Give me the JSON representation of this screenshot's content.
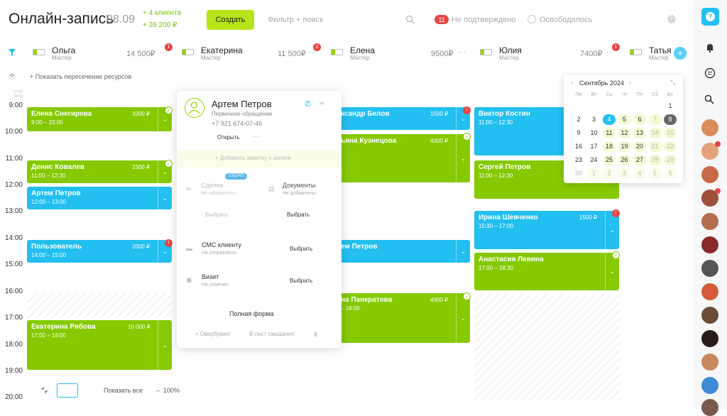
{
  "header": {
    "title": "Онлайн-запись",
    "date": "08.09",
    "new_clients": "+ 4 клиента",
    "revenue": "+ 26 200 ₽",
    "create_label": "Создать",
    "search_placeholder": "Фильтр + поиск",
    "unconfirmed_count": "11",
    "unconfirmed_label": "Не подтверждено",
    "freed_label": "Освободилось"
  },
  "resources": [
    {
      "name": "Ольга",
      "role": "Мастер",
      "price": "14 500₽",
      "badge": "1"
    },
    {
      "name": "Екатерина",
      "role": "Мастер",
      "price": "11 500₽",
      "badge": "2"
    },
    {
      "name": "Елена",
      "role": "Мастер",
      "price": "9500₽",
      "badge": ""
    },
    {
      "name": "Юлия",
      "role": "Мастер",
      "price": "7400₽",
      "badge": "1"
    },
    {
      "name": "Татья",
      "role": "Мастер",
      "price": "",
      "badge": ""
    }
  ],
  "show_overlap": "+ Показать пересечение ресурсов",
  "times": [
    "9:00",
    "10:00",
    "11:00",
    "12:00",
    "13:00",
    "14:00",
    "15:00",
    "16:00",
    "17:00",
    "18:00",
    "19:00",
    "20:00"
  ],
  "small_time": "07:00 08:00",
  "appointments": [
    {
      "name": "Елена Снегирева",
      "time": "9:00 – 10:00",
      "price": "1000 ₽"
    },
    {
      "name": "Денис Ковалев",
      "time": "11:00 – 12:30",
      "price": "1500 ₽"
    },
    {
      "name": "Артем Петров",
      "time": "12:00 – 13:00",
      "price": ""
    },
    {
      "name": "Пользователь",
      "time": "14:00 – 15:00",
      "price": "2000 ₽"
    },
    {
      "name": "Екатерина Рябова",
      "time": "17:00 – 19:00",
      "price": "10 000 ₽"
    },
    {
      "name": "ксандр Белов",
      "time": "",
      "price": "1500 ₽"
    },
    {
      "name": "ьяна Кузнецова",
      "time": "",
      "price": "4000 ₽"
    },
    {
      "name": "ем Петров",
      "time": "",
      "price": ""
    },
    {
      "name": "на Панкратова",
      "time": "– 18:00",
      "price": "4000 ₽"
    },
    {
      "name": "Виктор Костин",
      "time": "11:00 – 12:30",
      "price": ""
    },
    {
      "name": "Сергей Петров",
      "time": "11:00 – 12:30",
      "price": ""
    },
    {
      "name": "Ирина Шевченко",
      "time": "15:30 – 17:00",
      "price": "1500 ₽"
    },
    {
      "name": "Анастасия Левина",
      "time": "17:00 – 18:30",
      "price": ""
    }
  ],
  "popup": {
    "name": "Артем Петров",
    "subtitle": "Первичное обращение",
    "phone": "+7 921 674-07-46",
    "open": "Открыть",
    "add_note": "+ Добавить заметку к записи",
    "soon": "СКОРО",
    "deal": "Сделка",
    "deal_status": "Не оформлено",
    "docs": "Документы",
    "docs_status": "Не добавлены",
    "choose": "Выбрать",
    "sms": "СМС клиенту",
    "sms_status": "Не отправлено",
    "visit": "Визит",
    "visit_status": "Не отмечен",
    "full_form": "Полная форма",
    "overbooking": "+ Овербукинг",
    "waitlist": "В лист ожидания"
  },
  "calendar": {
    "title": "Сентябрь 2024",
    "weekdays": [
      "Пн",
      "Вт",
      "Ср",
      "Чт",
      "Пт",
      "Сб",
      "Вс"
    ],
    "rows": [
      [
        "",
        "",
        "",
        "",
        "",
        "",
        "1"
      ],
      [
        "2",
        "3",
        "4",
        "5",
        "6",
        "7",
        "8"
      ],
      [
        "9",
        "10",
        "11",
        "12",
        "13",
        "14",
        "15"
      ],
      [
        "16",
        "17",
        "18",
        "19",
        "20",
        "21",
        "22"
      ],
      [
        "23",
        "24",
        "25",
        "26",
        "27",
        "28",
        "29"
      ],
      [
        "30",
        "1",
        "2",
        "3",
        "4",
        "5",
        "6"
      ]
    ]
  },
  "footer": {
    "show_all": "Показать все",
    "zoom": "100%"
  }
}
